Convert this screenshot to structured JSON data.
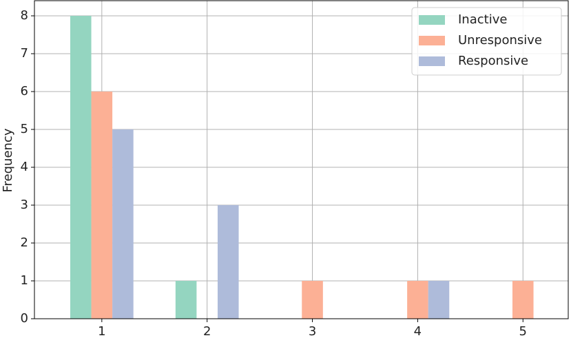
{
  "chart_data": {
    "type": "bar",
    "y_label": "Frequency",
    "x": [
      1,
      2,
      3,
      4,
      5
    ],
    "series": [
      {
        "name": "Inactive",
        "color": "#94d5c0",
        "values": [
          8,
          1,
          0,
          0,
          0
        ]
      },
      {
        "name": "Unresponsive",
        "color": "#fcb095",
        "values": [
          6,
          0,
          1,
          1,
          1
        ]
      },
      {
        "name": "Responsive",
        "color": "#aebbda",
        "values": [
          5,
          3,
          0,
          1,
          0
        ]
      }
    ],
    "xlim": [
      0.36,
      5.43
    ],
    "xticks": [
      1,
      2,
      3,
      4,
      5
    ],
    "ylim": [
      0,
      8.4
    ],
    "yticks": [
      0,
      1,
      2,
      3,
      4,
      5,
      6,
      7,
      8
    ],
    "grid": true,
    "legend": "upper right"
  }
}
